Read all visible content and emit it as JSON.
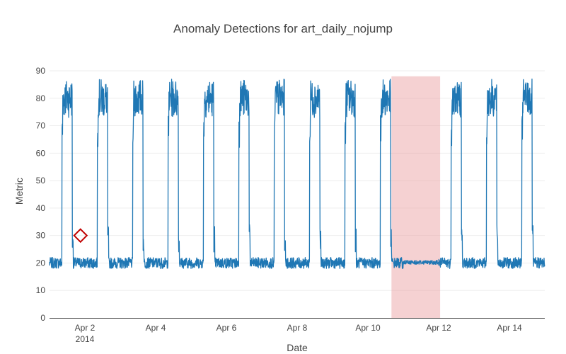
{
  "colors": {
    "series": "#1f77b4",
    "anomaly_window": "#e8999c",
    "anomaly_marker": "#c00000",
    "grid": "#eeeeee",
    "axis": "#444444"
  },
  "chart_data": {
    "type": "line",
    "title": "Anomaly Detections for art_daily_nojump",
    "xlabel": "Date",
    "ylabel": "Metric",
    "grid": "horizontal",
    "legend": "none",
    "xlim": [
      "2014-04-01T00:00",
      "2014-04-15T00:00"
    ],
    "ylim": [
      0,
      90
    ],
    "y_ticks": [
      0,
      10,
      20,
      30,
      40,
      50,
      60,
      70,
      80,
      90
    ],
    "x_ticks": [
      {
        "date": "2014-04-02",
        "label": "Apr 2",
        "sublabel": "2014"
      },
      {
        "date": "2014-04-04",
        "label": "Apr 4"
      },
      {
        "date": "2014-04-06",
        "label": "Apr 6"
      },
      {
        "date": "2014-04-08",
        "label": "Apr 8"
      },
      {
        "date": "2014-04-10",
        "label": "Apr 10"
      },
      {
        "date": "2014-04-12",
        "label": "Apr 12"
      },
      {
        "date": "2014-04-14",
        "label": "Apr 14"
      }
    ],
    "series": [
      {
        "pattern": "daily square wave",
        "low_level": 20,
        "low_noise_range": [
          18,
          22
        ],
        "high_level": 80,
        "high_noise_range": [
          73,
          87
        ],
        "daily_high_start_hour": 8.5,
        "daily_high_end_hour": 15.5,
        "abnormal_low_day": "2014-04-11"
      }
    ],
    "anomaly_windows": [
      {
        "start": "2014-04-10T16:00",
        "end": "2014-04-12T01:00"
      }
    ],
    "anomaly_points": [
      {
        "date": "2014-04-01T21:00",
        "value": 30
      }
    ]
  }
}
